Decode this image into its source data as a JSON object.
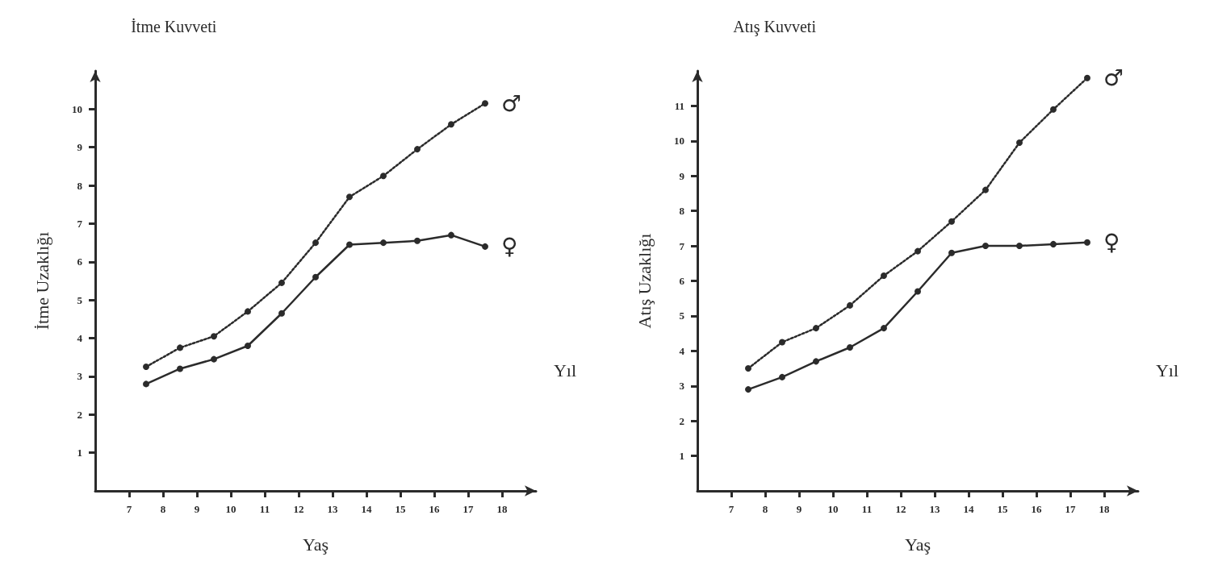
{
  "chart_data": [
    {
      "type": "line",
      "title": "İtme Kuvveti",
      "xlabel": "Yaş",
      "ylabel": "İtme Uzaklığı",
      "xlim": [
        6,
        19
      ],
      "xticks": [
        7,
        8,
        9,
        10,
        11,
        12,
        13,
        14,
        15,
        16,
        17,
        18
      ],
      "ylim": [
        0,
        11
      ],
      "yticks": [
        1,
        2,
        3,
        4,
        5,
        6,
        7,
        8,
        9,
        10
      ],
      "grid": false,
      "legend": false,
      "marker": "circle",
      "annotations": [
        "Yıl"
      ],
      "series": [
        {
          "name": "♂",
          "color": "#2b2b2b",
          "line_style": "dotted",
          "x": [
            7.5,
            8.5,
            9.5,
            10.5,
            11.5,
            12.5,
            13.5,
            14.5,
            15.5,
            16.5,
            17.5
          ],
          "values": [
            3.25,
            3.75,
            4.05,
            4.7,
            5.45,
            6.5,
            7.7,
            8.25,
            8.95,
            9.6,
            10.15
          ]
        },
        {
          "name": "♀",
          "color": "#2b2b2b",
          "line_style": "solid",
          "x": [
            7.5,
            8.5,
            9.5,
            10.5,
            11.5,
            12.5,
            13.5,
            14.5,
            15.5,
            16.5,
            17.5
          ],
          "values": [
            2.8,
            3.2,
            3.45,
            3.8,
            4.65,
            5.6,
            6.45,
            6.5,
            6.55,
            6.7,
            6.4
          ]
        }
      ]
    },
    {
      "type": "line",
      "title": "Atış Kuvveti",
      "xlabel": "Yaş",
      "ylabel": "Atış Uzaklığı",
      "xlim": [
        6,
        19
      ],
      "xticks": [
        7,
        8,
        9,
        10,
        11,
        12,
        13,
        14,
        15,
        16,
        17,
        18
      ],
      "ylim": [
        0,
        12
      ],
      "yticks": [
        1,
        2,
        3,
        4,
        5,
        6,
        7,
        8,
        9,
        10,
        11
      ],
      "grid": false,
      "legend": false,
      "marker": "circle",
      "annotations": [
        "Yıl"
      ],
      "series": [
        {
          "name": "♂",
          "color": "#2b2b2b",
          "line_style": "dotted",
          "x": [
            7.5,
            8.5,
            9.5,
            10.5,
            11.5,
            12.5,
            13.5,
            14.5,
            15.5,
            16.5,
            17.5
          ],
          "values": [
            3.5,
            4.25,
            4.65,
            5.3,
            6.15,
            6.85,
            7.7,
            8.6,
            9.95,
            10.9,
            11.8
          ]
        },
        {
          "name": "♀",
          "color": "#2b2b2b",
          "line_style": "solid",
          "x": [
            7.5,
            8.5,
            9.5,
            10.5,
            11.5,
            12.5,
            13.5,
            14.5,
            15.5,
            16.5,
            17.5
          ],
          "values": [
            2.9,
            3.25,
            3.7,
            4.1,
            4.65,
            5.7,
            6.8,
            7.0,
            7.0,
            7.05,
            7.1
          ]
        }
      ]
    }
  ]
}
